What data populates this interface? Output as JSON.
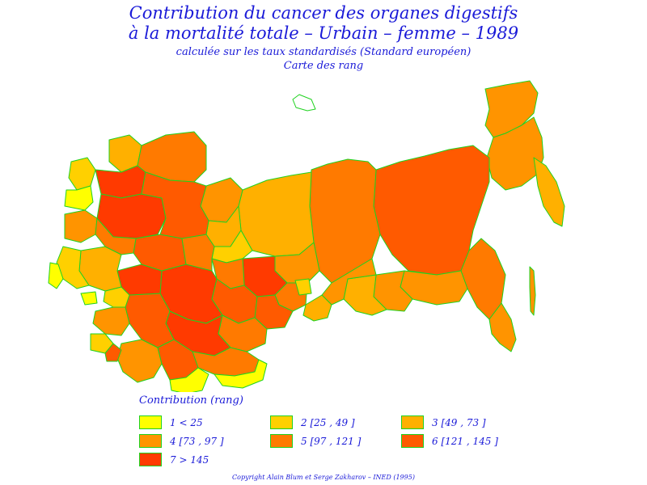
{
  "header": {
    "title_line1": "Contribution du cancer des organes digestifs",
    "title_line2": "à la mortalité totale – Urbain – femme – 1989",
    "subtitle": "calculée sur les taux standardisés (Standard européen)",
    "map_caption": "Carte des rang"
  },
  "legend": {
    "title": "Contribution (rang)",
    "items": [
      {
        "label": "1 < 25",
        "color": "#ffff00"
      },
      {
        "label": "2 [25 , 49 ]",
        "color": "#ffd000"
      },
      {
        "label": "3 [49 , 73 ]",
        "color": "#ffb000"
      },
      {
        "label": "4 [73 , 97 ]",
        "color": "#ff9400"
      },
      {
        "label": "5 [97 , 121 ]",
        "color": "#ff7a00"
      },
      {
        "label": "6 [121 , 145 ]",
        "color": "#ff5a00"
      },
      {
        "label": "7 > 145",
        "color": "#ff3a00"
      }
    ]
  },
  "colors": {
    "region_border": "#1fd21f",
    "text": "#1a1ad8"
  },
  "footer": {
    "copyright": "Copyright Alain Blum et Serge Zakharov – INED (1995)"
  }
}
